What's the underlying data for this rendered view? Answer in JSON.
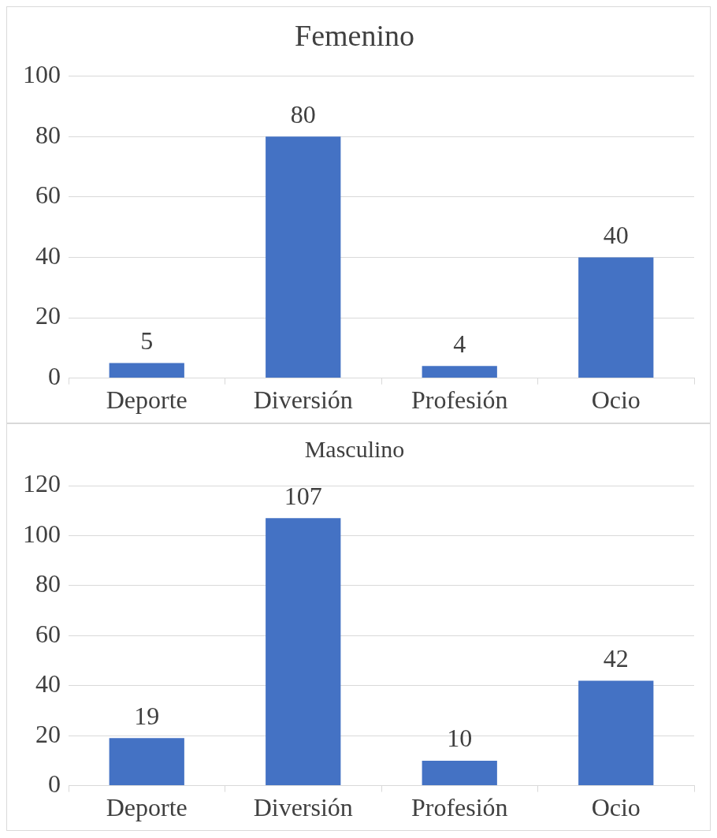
{
  "chart_data": [
    {
      "type": "bar",
      "title": "Femenino",
      "categories": [
        "Deporte",
        "Diversión",
        "Profesión",
        "Ocio"
      ],
      "values": [
        5,
        80,
        4,
        40
      ],
      "color": "#4472c4",
      "ylim": [
        0,
        100
      ],
      "yticks": [
        0,
        20,
        40,
        60,
        80,
        100
      ],
      "grid": "y",
      "data_labels": true,
      "legend": false
    },
    {
      "type": "bar",
      "title": "Masculino",
      "categories": [
        "Deporte",
        "Diversión",
        "Profesión",
        "Ocio"
      ],
      "values": [
        19,
        107,
        10,
        42
      ],
      "color": "#4472c4",
      "ylim": [
        0,
        120
      ],
      "yticks": [
        0,
        20,
        40,
        60,
        80,
        100,
        120
      ],
      "grid": "y",
      "data_labels": true,
      "legend": false
    }
  ]
}
